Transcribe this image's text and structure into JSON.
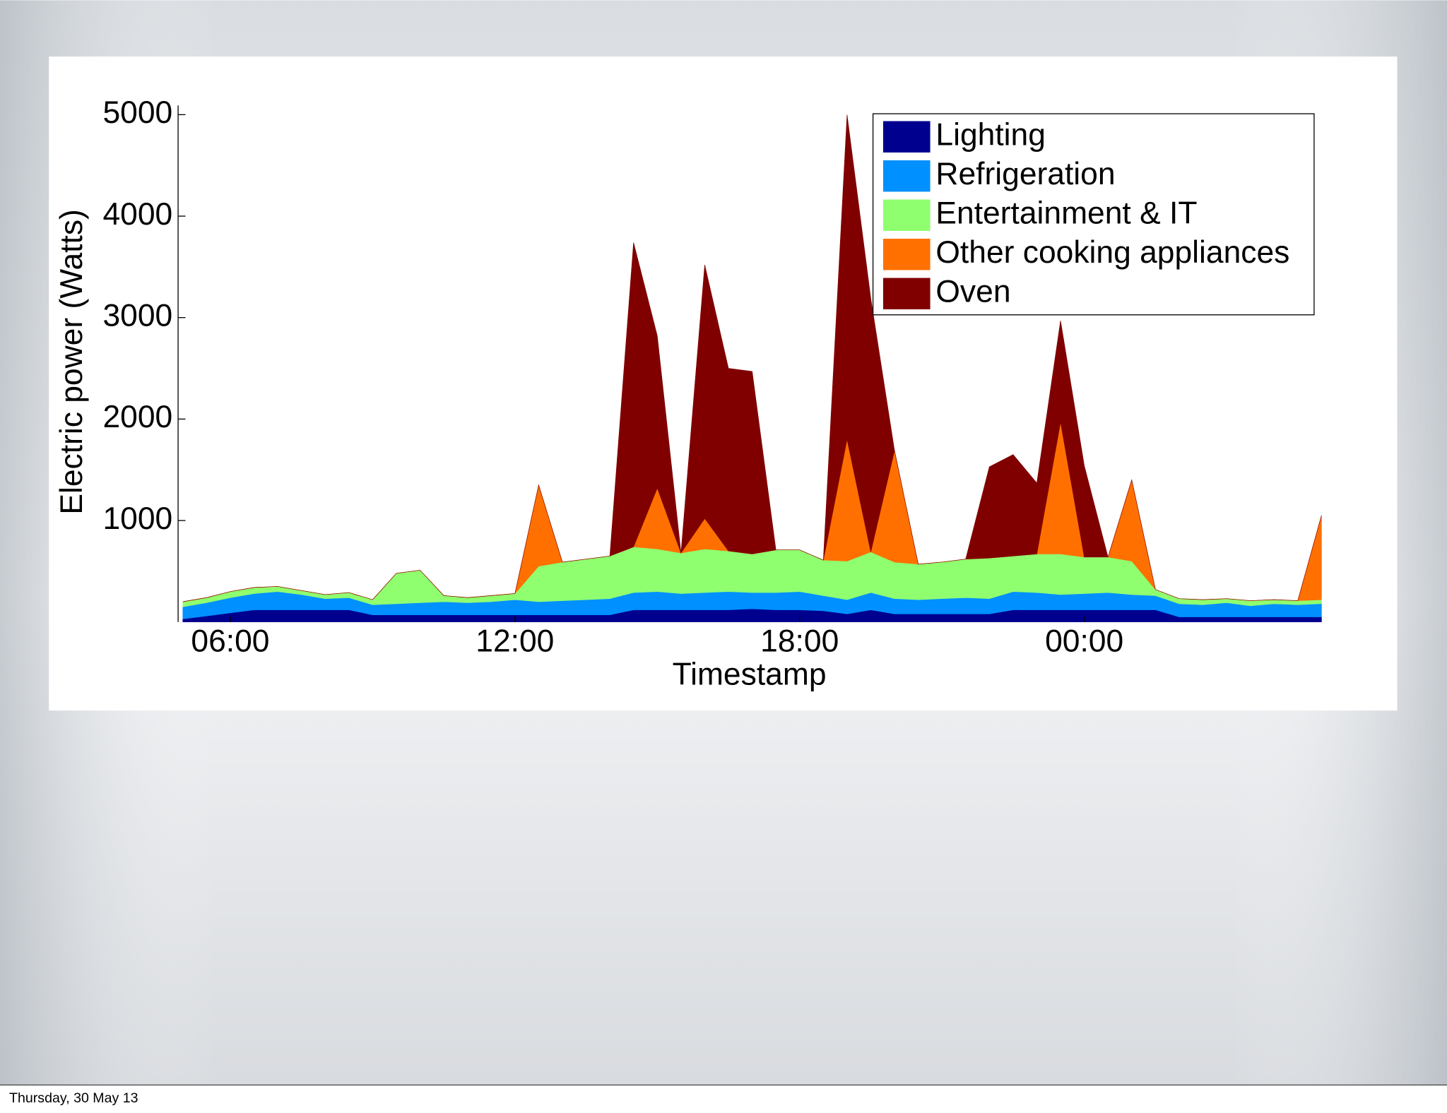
{
  "chart_data": {
    "type": "stacked_area",
    "xlabel": "Timestamp",
    "ylabel": "Electric power (Watts)",
    "x": [
      5,
      5.5,
      6,
      6.5,
      7,
      7.5,
      8,
      8.5,
      9,
      9.5,
      10,
      10.5,
      11,
      11.5,
      12,
      12.5,
      13,
      13.5,
      14,
      14.5,
      15,
      15.5,
      16,
      16.5,
      17,
      17.5,
      18,
      18.5,
      19,
      19.5,
      20,
      20.5,
      21,
      21.5,
      22,
      22.5,
      23,
      23.5,
      24,
      24.5,
      25,
      25.5,
      26,
      26.5,
      27,
      27.5,
      28,
      28.5,
      29
    ],
    "xlim": [
      4.9,
      29
    ],
    "xticks": [
      {
        "value": 6,
        "label": "06:00"
      },
      {
        "value": 12,
        "label": "12:00"
      },
      {
        "value": 18,
        "label": "18:00"
      },
      {
        "value": 24,
        "label": "00:00"
      }
    ],
    "ylim": [
      0,
      5000
    ],
    "yticks": [
      1000,
      2000,
      3000,
      4000,
      5000
    ],
    "legend": "upper right",
    "series": [
      {
        "name": "Lighting",
        "color": "#00008f",
        "values": [
          30,
          60,
          90,
          120,
          120,
          120,
          120,
          120,
          70,
          70,
          70,
          70,
          70,
          70,
          70,
          70,
          70,
          70,
          70,
          120,
          120,
          120,
          120,
          120,
          130,
          120,
          120,
          110,
          80,
          120,
          80,
          80,
          80,
          80,
          80,
          120,
          120,
          120,
          120,
          120,
          120,
          120,
          50,
          50,
          50,
          50,
          50,
          50,
          50
        ]
      },
      {
        "name": "Refrigeration",
        "color": "#0090ff",
        "values": [
          120,
          130,
          150,
          160,
          180,
          150,
          110,
          120,
          100,
          110,
          120,
          130,
          120,
          130,
          150,
          130,
          140,
          150,
          160,
          170,
          180,
          160,
          170,
          180,
          160,
          170,
          180,
          150,
          140,
          170,
          150,
          140,
          150,
          160,
          150,
          180,
          170,
          150,
          160,
          170,
          150,
          140,
          130,
          120,
          140,
          110,
          130,
          120,
          130
        ]
      },
      {
        "name": "Entertainment & IT",
        "color": "#8fff70",
        "values": [
          50,
          50,
          60,
          60,
          50,
          40,
          40,
          50,
          50,
          300,
          320,
          60,
          50,
          60,
          60,
          350,
          380,
          400,
          420,
          450,
          420,
          400,
          430,
          400,
          380,
          420,
          410,
          350,
          380,
          400,
          360,
          350,
          360,
          380,
          400,
          350,
          380,
          400,
          360,
          350,
          330,
          60,
          50,
          50,
          40,
          50,
          40,
          40,
          40
        ]
      },
      {
        "name": "Other cooking appliances",
        "color": "#ff7000",
        "values": [
          0,
          0,
          0,
          0,
          0,
          0,
          0,
          0,
          0,
          0,
          0,
          0,
          0,
          0,
          0,
          800,
          0,
          0,
          0,
          0,
          600,
          0,
          300,
          0,
          0,
          0,
          0,
          0,
          1200,
          0,
          1100,
          0,
          0,
          0,
          0,
          0,
          0,
          1300,
          0,
          0,
          800,
          0,
          0,
          0,
          0,
          0,
          0,
          0,
          830
        ]
      },
      {
        "name": "Oven",
        "color": "#800000",
        "values": [
          0,
          0,
          0,
          0,
          0,
          0,
          0,
          0,
          0,
          0,
          0,
          0,
          0,
          0,
          0,
          0,
          0,
          0,
          0,
          3000,
          1500,
          0,
          2500,
          1800,
          1800,
          0,
          0,
          0,
          3200,
          2500,
          0,
          0,
          0,
          0,
          900,
          1000,
          700,
          1000,
          900,
          0,
          0,
          0,
          0,
          0,
          0,
          0,
          0,
          0,
          0
        ]
      }
    ]
  },
  "footer": "Thursday, 30 May 13"
}
